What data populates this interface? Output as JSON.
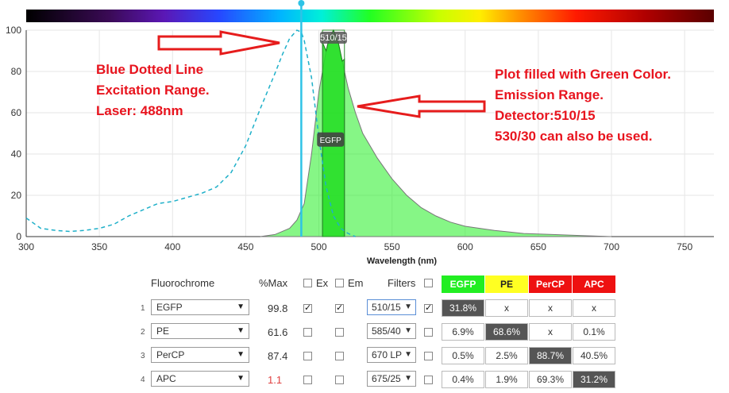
{
  "chart_data": {
    "type": "area",
    "xlabel": "Wavelength (nm)",
    "xlim": [
      300,
      770
    ],
    "ylim": [
      0,
      100
    ],
    "xticks": [
      300,
      350,
      400,
      450,
      500,
      550,
      600,
      650,
      700,
      750
    ],
    "yticks": [
      0,
      20,
      40,
      60,
      80,
      100
    ],
    "grid": true,
    "laser_nm": 488,
    "filter_label": "510/15",
    "filter_center_nm": 510,
    "filter_width_nm": 15,
    "series_label": "EGFP",
    "series": [
      {
        "name": "EGFP",
        "style": "dashed",
        "kind": "excitation",
        "color": "#1fb0c9",
        "x": [
          300,
          310,
          320,
          330,
          340,
          350,
          360,
          370,
          380,
          390,
          400,
          410,
          420,
          430,
          440,
          450,
          460,
          470,
          475,
          480,
          485,
          488,
          490,
          495,
          500,
          505,
          510,
          515,
          520,
          525
        ],
        "y": [
          9,
          4,
          3,
          2.5,
          3,
          4,
          6,
          10,
          13,
          16,
          17,
          19,
          21,
          24,
          31,
          44,
          62,
          79,
          88,
          96,
          100,
          99,
          95,
          77,
          48,
          24,
          10,
          4,
          1.5,
          0
        ]
      },
      {
        "name": "EGFP",
        "style": "filled",
        "kind": "emission",
        "color": "#22dd22",
        "x": [
          460,
          470,
          480,
          485,
          490,
          495,
          500,
          505,
          507,
          510,
          513,
          516,
          520,
          525,
          530,
          540,
          550,
          560,
          570,
          580,
          590,
          600,
          620,
          640,
          660,
          680,
          700
        ],
        "y": [
          0,
          1,
          4,
          8,
          16,
          40,
          70,
          90,
          96,
          100,
          95,
          85,
          72,
          60,
          50,
          38,
          28,
          20,
          14,
          10,
          7,
          5,
          3,
          1.5,
          1,
          0.5,
          0
        ]
      }
    ]
  },
  "annotations": {
    "left": [
      "Blue Dotted Line",
      "Excitation Range.",
      "Laser: 488nm"
    ],
    "right": [
      "Plot filled with Green Color.",
      "Emission Range.",
      "Detector:510/15",
      "530/30 can also be used."
    ]
  },
  "spectrum_bar": {
    "from_nm": 300,
    "to_nm": 770
  },
  "table": {
    "headers": {
      "fluorochrome": "Fluorochrome",
      "pmax": "%Max",
      "ex": "Ex",
      "em": "Em",
      "filters": "Filters"
    },
    "matrix_headers": [
      {
        "label": "EGFP",
        "bg": "#22ee22",
        "fg": "#ffffff"
      },
      {
        "label": "PE",
        "bg": "#ffff22",
        "fg": "#222222"
      },
      {
        "label": "PerCP",
        "bg": "#ee1111",
        "fg": "#ffffff"
      },
      {
        "label": "APC",
        "bg": "#ee1111",
        "fg": "#ffffff"
      }
    ],
    "rows": [
      {
        "index": "1",
        "name": "EGFP",
        "pmax": "99.8",
        "pmax_color": "#333333",
        "ex": true,
        "em": true,
        "filter": "510/15",
        "filter_checked": true,
        "active": true,
        "cells": [
          "31.8%",
          "x",
          "x",
          "x"
        ],
        "hi": [
          true,
          false,
          false,
          false
        ]
      },
      {
        "index": "2",
        "name": "PE",
        "pmax": "61.6",
        "pmax_color": "#333333",
        "ex": false,
        "em": false,
        "filter": "585/40",
        "filter_checked": false,
        "active": false,
        "cells": [
          "6.9%",
          "68.6%",
          "x",
          "0.1%"
        ],
        "hi": [
          false,
          true,
          false,
          false
        ]
      },
      {
        "index": "3",
        "name": "PerCP",
        "pmax": "87.4",
        "pmax_color": "#333333",
        "ex": false,
        "em": false,
        "filter": "670 LP",
        "filter_checked": false,
        "active": false,
        "cells": [
          "0.5%",
          "2.5%",
          "88.7%",
          "40.5%"
        ],
        "hi": [
          false,
          false,
          true,
          false
        ]
      },
      {
        "index": "4",
        "name": "APC",
        "pmax": "1.1",
        "pmax_color": "#e04040",
        "ex": false,
        "em": false,
        "filter": "675/25",
        "filter_checked": false,
        "active": false,
        "cells": [
          "0.4%",
          "1.9%",
          "69.3%",
          "31.2%"
        ],
        "hi": [
          false,
          false,
          false,
          true
        ]
      }
    ]
  }
}
